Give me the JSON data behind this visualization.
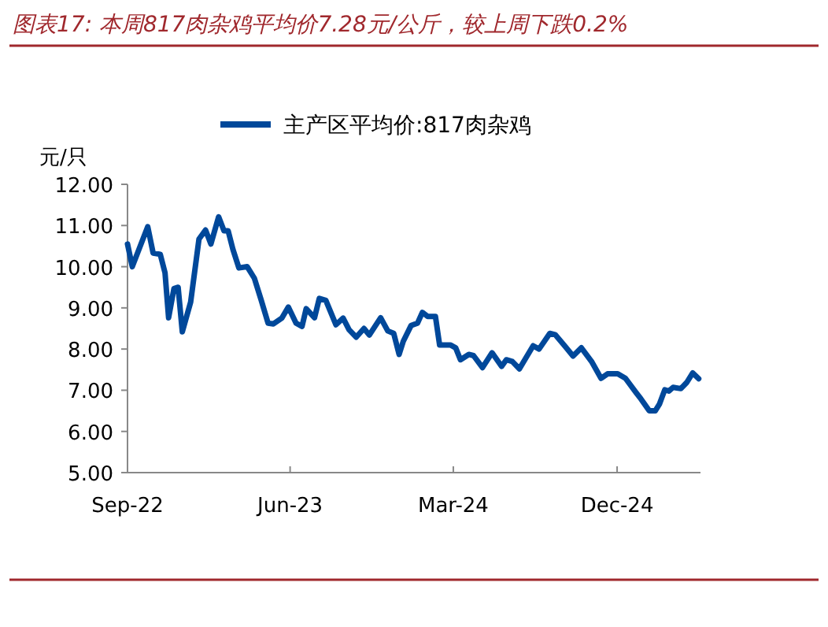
{
  "chart_data": {
    "type": "line",
    "title": "图表17: 本周817肉杂鸡平均价7.28元/公斤，较上周下跌0.2%",
    "ylabel": "元/只",
    "legend": "top",
    "xlim": [
      "2022-09-01",
      "2025-04-20"
    ],
    "xticks": [
      {
        "value": "2022-09-01",
        "label": "Sep-22"
      },
      {
        "value": "2023-06-01",
        "label": "Jun-23"
      },
      {
        "value": "2024-03-01",
        "label": "Mar-24"
      },
      {
        "value": "2024-12-01",
        "label": "Dec-24"
      }
    ],
    "ylim": [
      5,
      12
    ],
    "yticks": [
      {
        "value": 5,
        "label": "5.00"
      },
      {
        "value": 6,
        "label": "6.00"
      },
      {
        "value": 7,
        "label": "7.00"
      },
      {
        "value": 8,
        "label": "8.00"
      },
      {
        "value": 9,
        "label": "9.00"
      },
      {
        "value": 10,
        "label": "10.00"
      },
      {
        "value": 11,
        "label": "11.00"
      },
      {
        "value": 12,
        "label": "12.00"
      }
    ],
    "x": [
      "2022-09-01",
      "2022-09-09",
      "2022-10-05",
      "2022-10-14",
      "2022-10-26",
      "2022-11-03",
      "2022-11-09",
      "2022-11-18",
      "2022-11-25",
      "2022-12-02",
      "2022-12-16",
      "2022-12-30",
      "2023-01-10",
      "2023-01-19",
      "2023-02-01",
      "2023-02-10",
      "2023-02-17",
      "2023-02-25",
      "2023-03-07",
      "2023-03-21",
      "2023-04-02",
      "2023-04-13",
      "2023-04-25",
      "2023-05-04",
      "2023-05-18",
      "2023-05-29",
      "2023-06-11",
      "2023-06-21",
      "2023-06-28",
      "2023-07-12",
      "2023-07-20",
      "2023-07-31",
      "2023-08-17",
      "2023-08-29",
      "2023-09-08",
      "2023-09-20",
      "2023-10-03",
      "2023-10-12",
      "2023-10-31",
      "2023-11-12",
      "2023-11-22",
      "2023-12-01",
      "2023-12-08",
      "2023-12-21",
      "2024-01-01",
      "2024-01-09",
      "2024-01-18",
      "2024-01-31",
      "2024-02-07",
      "2024-02-25",
      "2024-03-05",
      "2024-03-13",
      "2024-03-27",
      "2024-04-04",
      "2024-04-19",
      "2024-05-05",
      "2024-05-21",
      "2024-05-29",
      "2024-06-08",
      "2024-06-20",
      "2024-06-29",
      "2024-07-13",
      "2024-07-23",
      "2024-08-10",
      "2024-08-19",
      "2024-09-05",
      "2024-09-18",
      "2024-10-02",
      "2024-10-19",
      "2024-11-04",
      "2024-11-15",
      "2024-12-02",
      "2024-12-15",
      "2025-01-02",
      "2025-01-10",
      "2025-01-24",
      "2025-02-03",
      "2025-02-10",
      "2025-02-19",
      "2025-02-26",
      "2025-03-05",
      "2025-03-18",
      "2025-03-28",
      "2025-04-07",
      "2025-04-17"
    ],
    "series": [
      {
        "name": "主产区平均价:817肉杂鸡",
        "color": "#00489a",
        "values": [
          10.55,
          10.0,
          10.97,
          10.33,
          10.3,
          9.85,
          8.76,
          9.47,
          9.5,
          8.42,
          9.14,
          10.67,
          10.89,
          10.55,
          11.21,
          10.87,
          10.87,
          10.42,
          9.97,
          10.0,
          9.72,
          9.21,
          8.63,
          8.61,
          8.75,
          9.02,
          8.63,
          8.55,
          8.98,
          8.76,
          9.23,
          9.18,
          8.59,
          8.75,
          8.47,
          8.29,
          8.5,
          8.34,
          8.76,
          8.44,
          8.38,
          7.87,
          8.19,
          8.57,
          8.63,
          8.89,
          8.79,
          8.79,
          8.1,
          8.1,
          8.03,
          7.74,
          7.87,
          7.84,
          7.55,
          7.91,
          7.58,
          7.74,
          7.7,
          7.52,
          7.74,
          8.08,
          8.0,
          8.38,
          8.35,
          8.06,
          7.83,
          8.03,
          7.7,
          7.29,
          7.4,
          7.4,
          7.29,
          6.94,
          6.79,
          6.5,
          6.5,
          6.66,
          7.01,
          6.98,
          7.07,
          7.04,
          7.19,
          7.42,
          7.28
        ]
      }
    ]
  }
}
